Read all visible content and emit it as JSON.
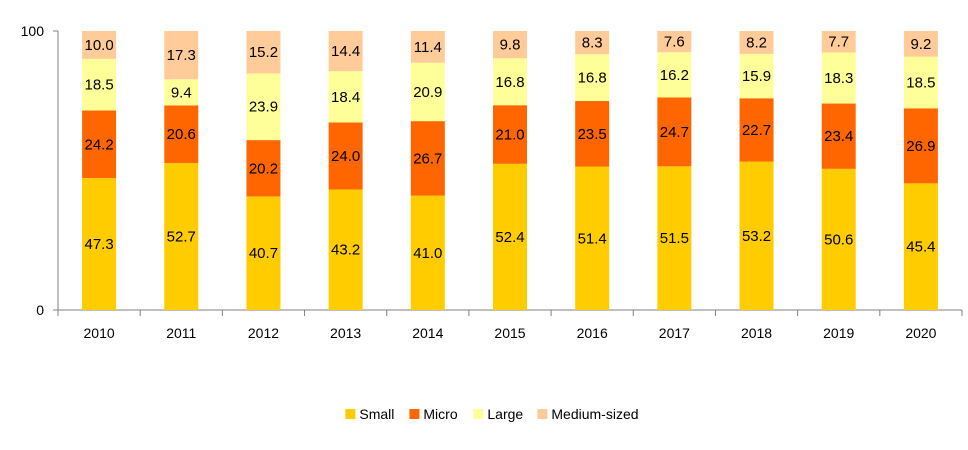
{
  "chart_data": {
    "type": "bar",
    "stacked": true,
    "categories": [
      "2010",
      "2011",
      "2012",
      "2013",
      "2014",
      "2015",
      "2016",
      "2017",
      "2018",
      "2019",
      "2020"
    ],
    "series": [
      {
        "name": "Small",
        "color": "#FFCC00",
        "values": [
          47.3,
          52.7,
          40.7,
          43.2,
          41.0,
          52.4,
          51.4,
          51.5,
          53.2,
          50.6,
          45.4
        ],
        "labels": [
          "47.3",
          "52.7",
          "40.7",
          "43.2",
          "41.0",
          "52.4",
          "51.4",
          "51.5",
          "53.2",
          "50.6",
          "45.4"
        ]
      },
      {
        "name": "Micro",
        "color": "#FF6600",
        "values": [
          24.2,
          20.6,
          20.2,
          24.0,
          26.7,
          21.0,
          23.5,
          24.7,
          22.7,
          23.4,
          26.9
        ],
        "labels": [
          "24.2",
          "20.6",
          "20.2",
          "24.0",
          "26.7",
          "21.0",
          "23.5",
          "24.7",
          "22.7",
          "23.4",
          "26.9"
        ]
      },
      {
        "name": "Large",
        "color": "#FFFF99",
        "values": [
          18.5,
          9.4,
          23.9,
          18.4,
          20.9,
          16.8,
          16.8,
          16.2,
          15.9,
          18.3,
          18.5
        ],
        "labels": [
          "18.5",
          "9.4",
          "23.9",
          "18.4",
          "20.9",
          "16.8",
          "16.8",
          "16.2",
          "15.9",
          "18.3",
          "18.5"
        ]
      },
      {
        "name": "Medium-sized",
        "color": "#FFCC99",
        "values": [
          10.0,
          17.3,
          15.2,
          14.4,
          11.4,
          9.8,
          8.3,
          7.6,
          8.2,
          7.7,
          9.2
        ],
        "labels": [
          "10.0",
          "17.3",
          "15.2",
          "14.4",
          "11.4",
          "9.8",
          "8.3",
          "7.6",
          "8.2",
          "7.7",
          "9.2"
        ]
      }
    ],
    "y_ticks": [
      "0",
      "100"
    ],
    "ylim": [
      0,
      100
    ],
    "grid": false,
    "legend_position": "bottom"
  }
}
